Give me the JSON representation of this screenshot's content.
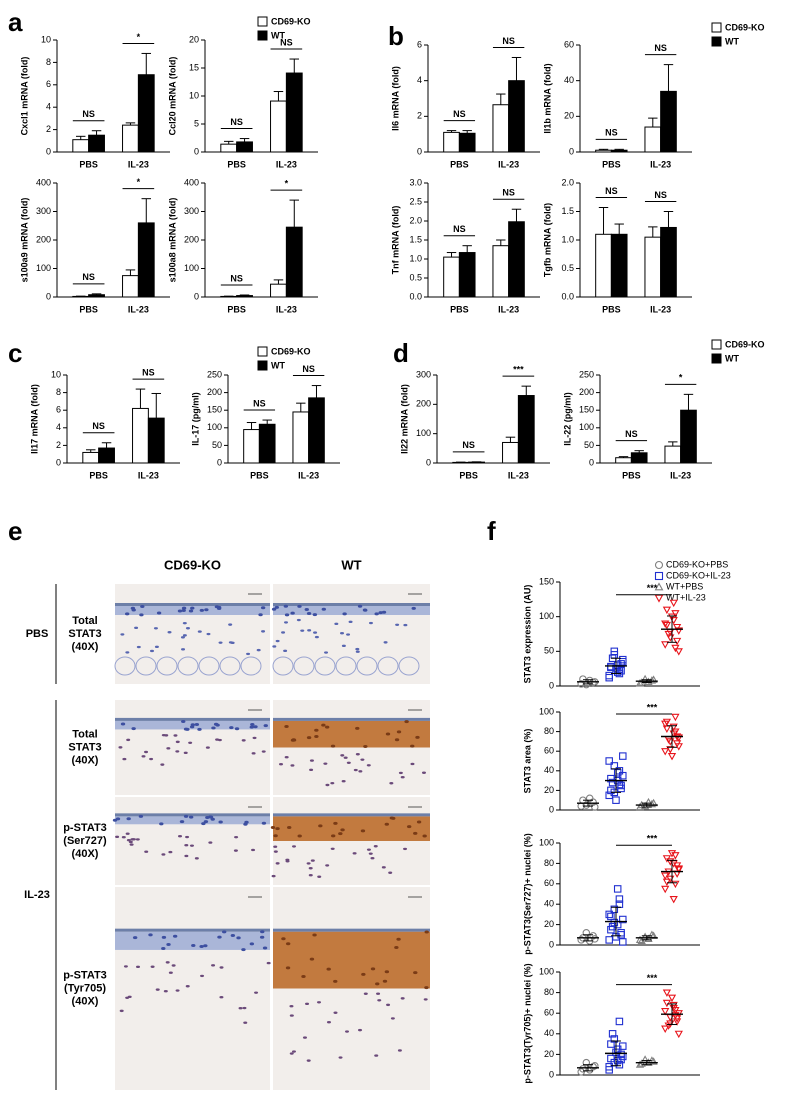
{
  "chart_data": [
    {
      "type": "bar",
      "label": "a",
      "categories": [
        "PBS",
        "IL-23"
      ],
      "series": [
        {
          "name": "CD69-KO",
          "color": "#ffffff"
        },
        {
          "name": "WT",
          "color": "#000000"
        }
      ],
      "subplots": [
        {
          "ylabel": "Cxcl1 mRNA (fold)",
          "ylim": [
            0,
            10
          ],
          "yticks": [
            0,
            2,
            4,
            6,
            8,
            10
          ],
          "values": [
            [
              1.1,
              2.4
            ],
            [
              1.5,
              6.9
            ]
          ],
          "errors": [
            [
              0.3,
              0.2
            ],
            [
              0.4,
              1.9
            ]
          ],
          "annotations": [
            "NS",
            "*"
          ]
        },
        {
          "ylabel": "Ccl20 mRNA (fold)",
          "ylim": [
            0,
            20
          ],
          "yticks": [
            0,
            5,
            10,
            15,
            20
          ],
          "values": [
            [
              1.4,
              9.1
            ],
            [
              1.8,
              14.1
            ]
          ],
          "errors": [
            [
              0.5,
              1.7
            ],
            [
              0.6,
              2.5
            ]
          ],
          "annotations": [
            "NS",
            "NS"
          ]
        },
        {
          "ylabel": "s100a9 mRNA (fold)",
          "ylim": [
            0,
            400
          ],
          "yticks": [
            0,
            100,
            200,
            300,
            400
          ],
          "values": [
            [
              2,
              75
            ],
            [
              8,
              260
            ]
          ],
          "errors": [
            [
              1,
              20
            ],
            [
              3,
              85
            ]
          ],
          "annotations": [
            "NS",
            "*"
          ]
        },
        {
          "ylabel": "s100a8 mRNA (fold)",
          "ylim": [
            0,
            400
          ],
          "yticks": [
            0,
            100,
            200,
            300,
            400
          ],
          "values": [
            [
              2,
              45
            ],
            [
              5,
              245
            ]
          ],
          "errors": [
            [
              1,
              15
            ],
            [
              2,
              95
            ]
          ],
          "annotations": [
            "NS",
            "*"
          ]
        }
      ]
    },
    {
      "type": "bar",
      "label": "b",
      "categories": [
        "PBS",
        "IL-23"
      ],
      "series": [
        {
          "name": "CD69-KO",
          "color": "#ffffff"
        },
        {
          "name": "WT",
          "color": "#000000"
        }
      ],
      "subplots": [
        {
          "ylabel": "Il6 mRNA (fold)",
          "ylim": [
            0,
            6
          ],
          "yticks": [
            0,
            2,
            4,
            6
          ],
          "values": [
            [
              1.1,
              2.65
            ],
            [
              1.05,
              4.0
            ]
          ],
          "errors": [
            [
              0.1,
              0.6
            ],
            [
              0.15,
              1.3
            ]
          ],
          "annotations": [
            "NS",
            "NS"
          ]
        },
        {
          "ylabel": "Il1b mRNA (fold)",
          "ylim": [
            0,
            60
          ],
          "yticks": [
            0,
            20,
            40,
            60
          ],
          "values": [
            [
              1,
              14
            ],
            [
              1,
              34
            ]
          ],
          "errors": [
            [
              0.5,
              5
            ],
            [
              0.5,
              15
            ]
          ],
          "annotations": [
            "NS",
            "NS"
          ]
        },
        {
          "ylabel": "Tnf mRNA (fold)",
          "ylim": [
            0,
            3
          ],
          "yticks": [
            {
              "value": 0,
              "label": "0.0"
            },
            0.5,
            {
              "value": 1,
              "label": "1.0"
            },
            1.5,
            {
              "value": 2,
              "label": "2.0"
            },
            2.5,
            {
              "value": 3,
              "label": "3.0"
            }
          ],
          "values": [
            [
              1.05,
              1.35
            ],
            [
              1.17,
              1.98
            ]
          ],
          "errors": [
            [
              0.12,
              0.15
            ],
            [
              0.18,
              0.33
            ]
          ],
          "annotations": [
            "NS",
            "NS"
          ]
        },
        {
          "ylabel": "Tgfb mRNA (fold)",
          "ylim": [
            0,
            2
          ],
          "yticks": [
            {
              "value": 0,
              "label": "0.0"
            },
            0.5,
            {
              "value": 1,
              "label": "1.0"
            },
            1.5,
            {
              "value": 2,
              "label": "2.0"
            }
          ],
          "values": [
            [
              1.1,
              1.05
            ],
            [
              1.1,
              1.22
            ]
          ],
          "errors": [
            [
              0.47,
              0.18
            ],
            [
              0.18,
              0.28
            ]
          ],
          "annotations": [
            "NS",
            "NS"
          ]
        }
      ]
    },
    {
      "type": "bar",
      "label": "c",
      "categories": [
        "PBS",
        "IL-23"
      ],
      "series": [
        {
          "name": "CD69-KO",
          "color": "#ffffff"
        },
        {
          "name": "WT",
          "color": "#000000"
        }
      ],
      "subplots": [
        {
          "ylabel": "Il17 mRNA (fold)",
          "ylim": [
            0,
            10
          ],
          "yticks": [
            0,
            2,
            4,
            6,
            8,
            10
          ],
          "values": [
            [
              1.2,
              6.2
            ],
            [
              1.7,
              5.1
            ]
          ],
          "errors": [
            [
              0.3,
              2.2
            ],
            [
              0.6,
              2.8
            ]
          ],
          "annotations": [
            "NS",
            "NS"
          ]
        },
        {
          "ylabel": "IL-17 (pg/ml)",
          "ylim": [
            0,
            250
          ],
          "yticks": [
            0,
            50,
            100,
            150,
            200,
            250
          ],
          "values": [
            [
              95,
              145
            ],
            [
              110,
              185
            ]
          ],
          "errors": [
            [
              20,
              25
            ],
            [
              12,
              35
            ]
          ],
          "annotations": [
            "NS",
            "NS"
          ]
        }
      ]
    },
    {
      "type": "bar",
      "label": "d",
      "categories": [
        "PBS",
        "IL-23"
      ],
      "series": [
        {
          "name": "CD69-KO",
          "color": "#ffffff"
        },
        {
          "name": "WT",
          "color": "#000000"
        }
      ],
      "subplots": [
        {
          "ylabel": "Il22 mRNA (fold)",
          "ylim": [
            0,
            300
          ],
          "yticks": [
            0,
            100,
            200,
            300
          ],
          "values": [
            [
              2,
              70
            ],
            [
              3,
              230
            ]
          ],
          "errors": [
            [
              1,
              18
            ],
            [
              1,
              32
            ]
          ],
          "annotations": [
            "NS",
            "***"
          ]
        },
        {
          "ylabel": "IL-22 (pg/ml)",
          "ylim": [
            0,
            250
          ],
          "yticks": [
            0,
            50,
            100,
            150,
            200,
            250
          ],
          "values": [
            [
              15,
              48
            ],
            [
              29,
              150
            ]
          ],
          "errors": [
            [
              3,
              12
            ],
            [
              6,
              45
            ]
          ],
          "annotations": [
            "NS",
            "*"
          ]
        }
      ]
    },
    {
      "type": "scatter",
      "label": "f",
      "series": [
        {
          "name": "CD69-KO+PBS",
          "color": "#808080",
          "marker": "circle"
        },
        {
          "name": "CD69-KO+IL-23",
          "color": "#1f2fd0",
          "marker": "square"
        },
        {
          "name": "WT+PBS",
          "color": "#808080",
          "marker": "triangle"
        },
        {
          "name": "WT+IL-23",
          "color": "#e8141b",
          "marker": "triangle-down"
        }
      ],
      "subplots": [
        {
          "ylabel": "STAT3 expression (AU)",
          "ylim": [
            0,
            150
          ],
          "yticks": [
            0,
            50,
            100,
            150
          ],
          "annotation": "***",
          "values": [
            [
              3,
              5,
              8,
              2,
              10,
              6
            ],
            [
              15,
              22,
              30,
              45,
              28,
              35,
              18,
              25,
              40,
              12,
              32,
              20,
              50,
              27,
              38,
              24
            ],
            [
              4,
              8,
              6,
              10,
              5,
              9
            ],
            [
              60,
              85,
              95,
              70,
              110,
              80,
              55,
              100,
              75,
              90,
              65,
              120,
              78,
              88,
              50,
              105
            ]
          ],
          "mean": [
            6,
            29,
            7,
            82
          ],
          "sd": [
            3,
            11,
            2,
            19
          ]
        },
        {
          "ylabel": "STAT3 area (%)",
          "ylim": [
            0,
            100
          ],
          "yticks": [
            0,
            20,
            40,
            60,
            80,
            100
          ],
          "annotation": "***",
          "values": [
            [
              4,
              8,
              12,
              5,
              10,
              3
            ],
            [
              15,
              25,
              30,
              45,
              20,
              35,
              40,
              10,
              28,
              50,
              22,
              38,
              18,
              32,
              55,
              26
            ],
            [
              3,
              6,
              8,
              4,
              5,
              7
            ],
            [
              60,
              75,
              85,
              70,
              90,
              65,
              80,
              55,
              72,
              88,
              68,
              78,
              62,
              83,
              74,
              95
            ]
          ],
          "mean": [
            7,
            30,
            5,
            75
          ],
          "sd": [
            3,
            12,
            2,
            11
          ]
        },
        {
          "ylabel": "p-STAT3(Ser727)+ nuclei (%)",
          "ylim": [
            0,
            100
          ],
          "yticks": [
            0,
            20,
            40,
            60,
            80,
            100
          ],
          "annotation": "***",
          "values": [
            [
              5,
              9,
              4,
              12,
              7,
              6
            ],
            [
              5,
              10,
              20,
              35,
              15,
              25,
              45,
              8,
              18,
              30,
              12,
              55,
              22,
              28,
              3,
              40
            ],
            [
              5,
              10,
              6,
              8,
              4,
              9
            ],
            [
              55,
              70,
              80,
              65,
              85,
              75,
              60,
              90,
              72,
              68,
              78,
              45,
              82,
              62,
              74,
              88
            ]
          ],
          "mean": [
            7,
            23,
            7,
            72
          ],
          "sd": [
            3,
            14,
            2,
            11
          ]
        },
        {
          "ylabel": "p-STAT3(Tyr705)+ nuclei (%)",
          "ylim": [
            0,
            100
          ],
          "yticks": [
            0,
            20,
            40,
            60,
            80,
            100
          ],
          "annotation": "***",
          "values": [
            [
              3,
              8,
              5,
              12,
              6,
              9
            ],
            [
              8,
              15,
              25,
              12,
              30,
              18,
              10,
              22,
              40,
              5,
              20,
              14,
              35,
              16,
              28,
              52
            ],
            [
              10,
              14,
              12,
              15,
              11,
              13
            ],
            [
              45,
              55,
              65,
              50,
              70,
              60,
              58,
              75,
              48,
              62,
              52,
              68,
              56,
              80,
              40,
              63
            ]
          ],
          "mean": [
            7,
            21,
            12,
            59
          ],
          "sd": [
            3,
            12,
            2,
            10
          ]
        }
      ]
    }
  ],
  "panel_e": {
    "label": "e",
    "columns": [
      "CD69-KO",
      "WT"
    ],
    "groups": [
      {
        "name": "PBS",
        "rows": [
          [
            "Total",
            "STAT3",
            "(40X)"
          ]
        ]
      },
      {
        "name": "IL-23",
        "rows": [
          [
            "Total",
            "STAT3",
            "(40X)"
          ],
          [
            "p-STAT3",
            "(Ser727)",
            "(40X)"
          ],
          [
            "p-STAT3",
            "(Tyr705)",
            "(40X)"
          ]
        ]
      }
    ]
  }
}
